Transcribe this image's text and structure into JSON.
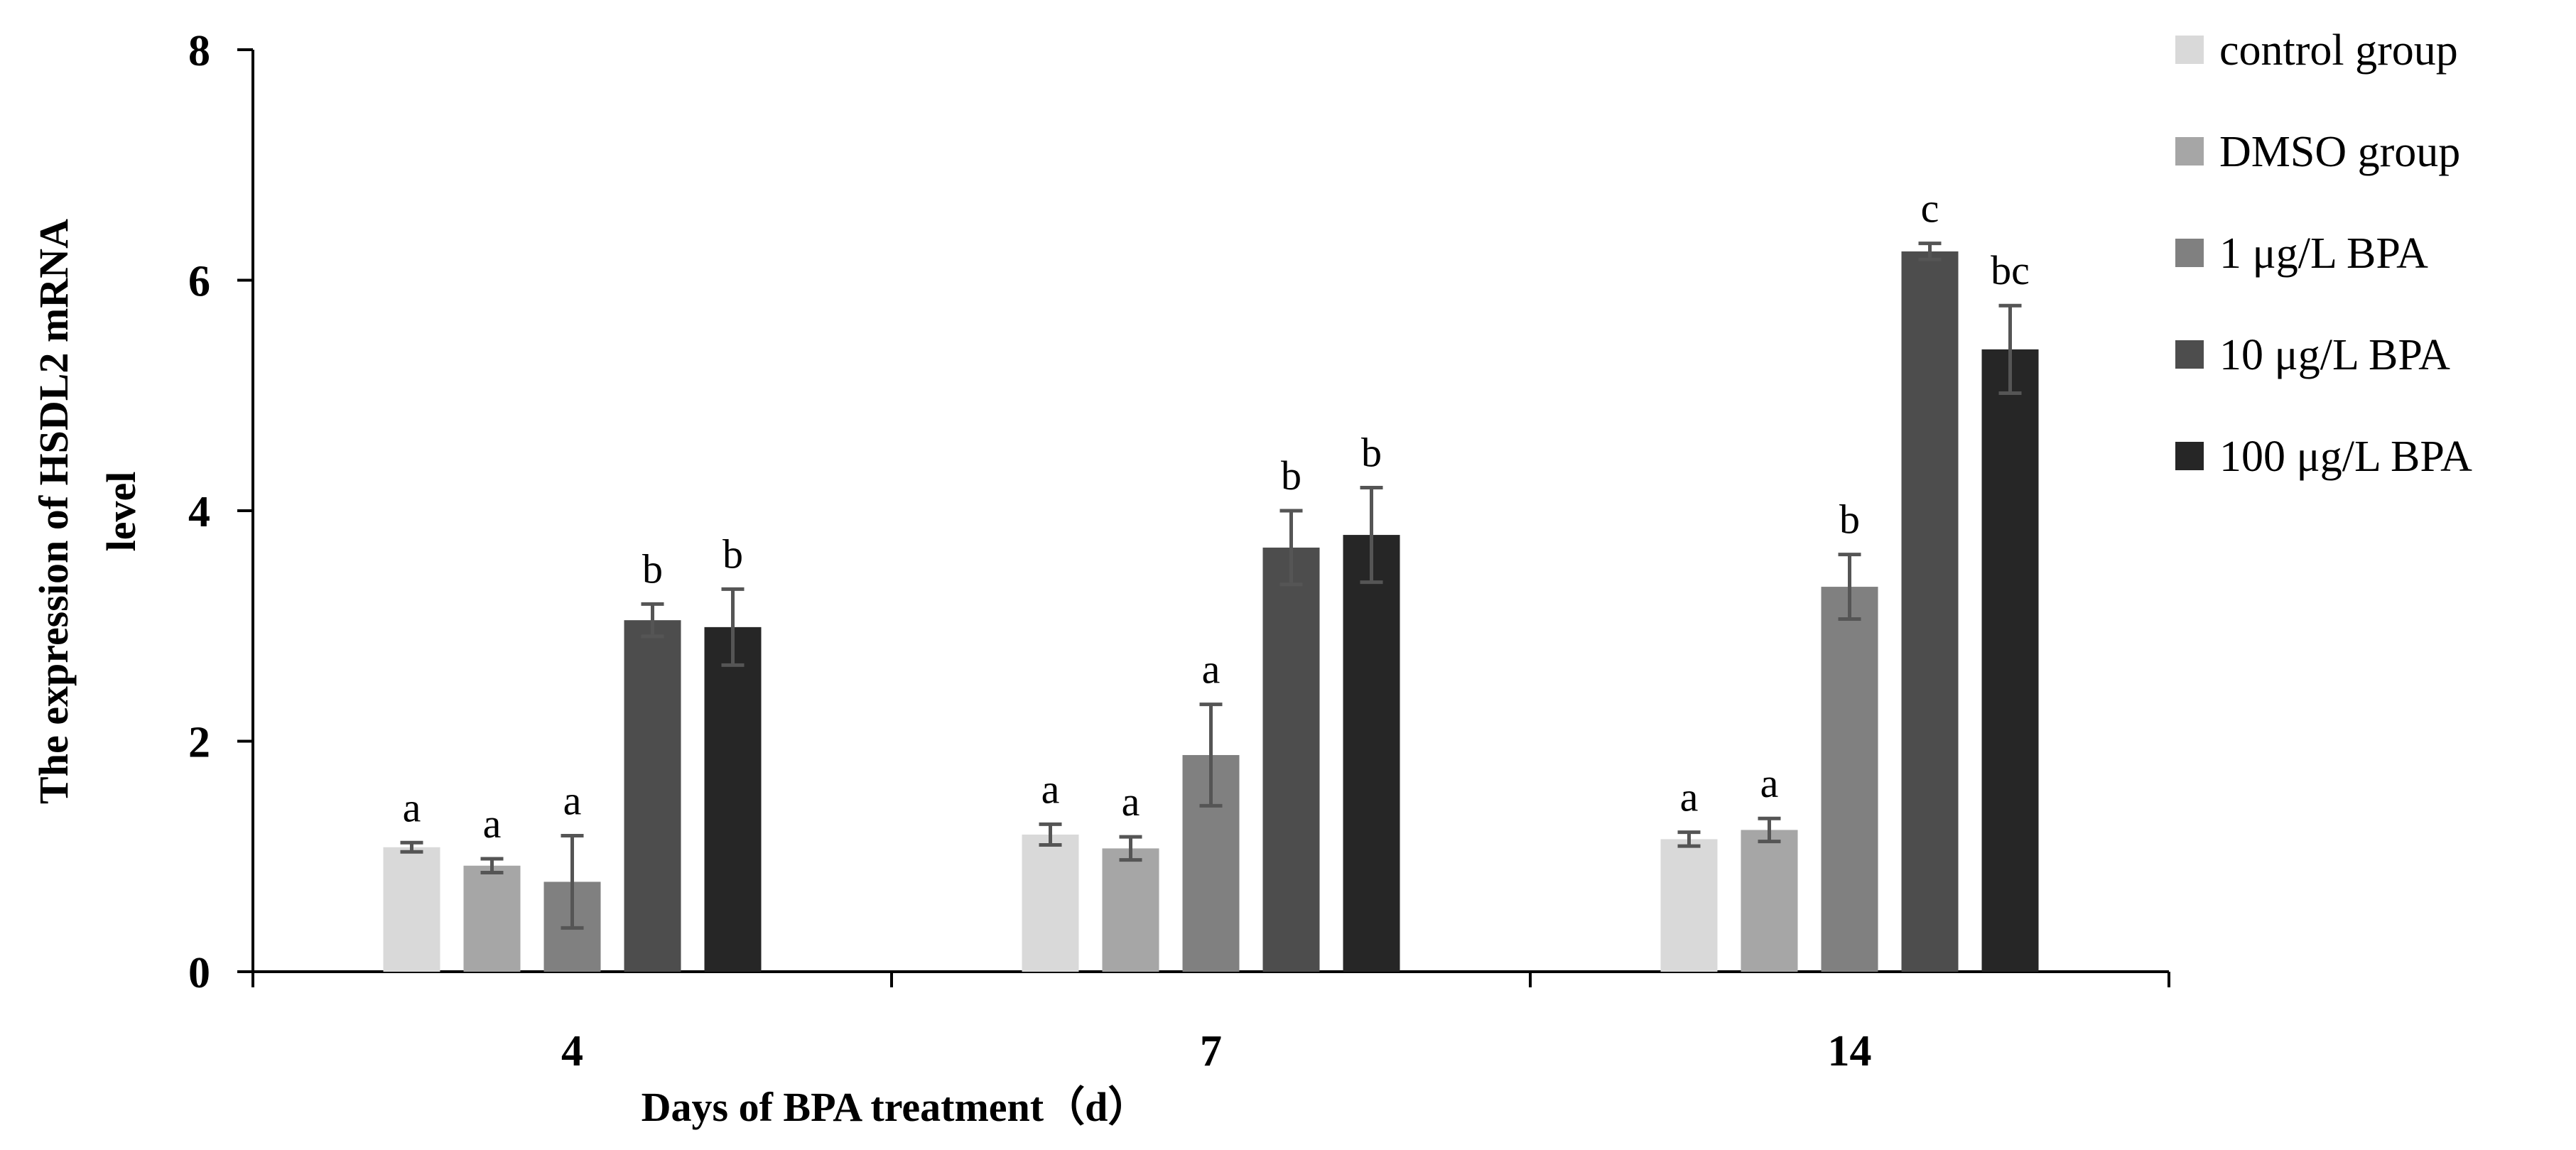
{
  "chart_data": {
    "type": "bar",
    "categories": [
      "4",
      "7",
      "14"
    ],
    "xlabel": "Days of BPA treatment（d）",
    "ylabel_line1": "The  expression of HSDL2 mRNA",
    "ylabel_line2": "level",
    "ylim": [
      0,
      8
    ],
    "yticks": [
      "0",
      "2",
      "4",
      "6",
      "8"
    ],
    "legend_position": "right",
    "series": [
      {
        "name": "control group",
        "color": "#d9d9d9",
        "values": [
          1.08,
          1.19,
          1.15
        ],
        "errors": [
          0.04,
          0.09,
          0.06
        ],
        "labels": [
          "a",
          "a",
          "a"
        ]
      },
      {
        "name": "DMSO group",
        "color": "#a6a6a6",
        "values": [
          0.92,
          1.07,
          1.23
        ],
        "errors": [
          0.06,
          0.1,
          0.1
        ],
        "labels": [
          "a",
          "a",
          "a"
        ]
      },
      {
        "name": "1 μg/L BPA",
        "color": "#808080",
        "values": [
          0.78,
          1.88,
          3.34
        ],
        "errors": [
          0.4,
          0.44,
          0.28
        ],
        "labels": [
          "a",
          "a",
          "b"
        ]
      },
      {
        "name": "10 μg/L BPA",
        "color": "#4d4d4d",
        "values": [
          3.05,
          3.68,
          6.25
        ],
        "errors": [
          0.14,
          0.32,
          0.07
        ],
        "labels": [
          "b",
          "b",
          "c"
        ]
      },
      {
        "name": "100 μg/L BPA",
        "color": "#262626",
        "values": [
          2.99,
          3.79,
          5.4
        ],
        "errors": [
          0.33,
          0.41,
          0.38
        ],
        "labels": [
          "b",
          "b",
          "bc"
        ]
      }
    ]
  }
}
